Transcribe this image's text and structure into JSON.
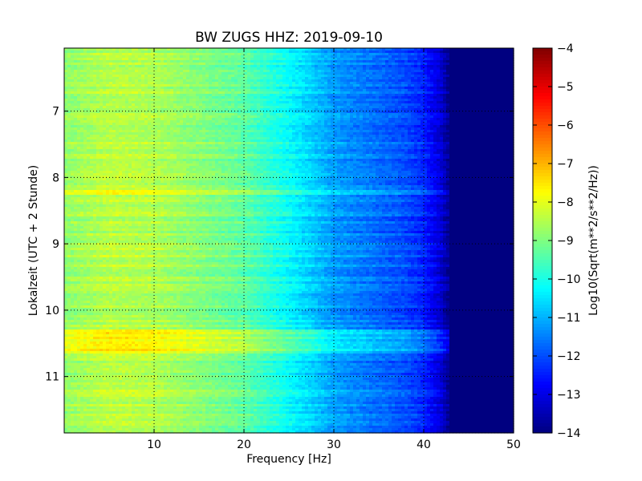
{
  "chart_data": {
    "type": "heatmap",
    "title": "BW ZUGS HHZ: 2019-09-10",
    "xlabel": "Frequency [Hz]",
    "ylabel": "Lokalzeit (UTC + 2 Stunde)",
    "xlim": [
      0,
      50
    ],
    "ylim": [
      6.05,
      11.85
    ],
    "x_ticks": [
      10,
      20,
      30,
      40,
      50
    ],
    "y_ticks": [
      7,
      8,
      9,
      10,
      11
    ],
    "grid": true,
    "colormap": "jet",
    "colorbar": {
      "label": "Log10(Sqrt(m**2/s**2/Hz))",
      "range": [
        -14,
        -4
      ],
      "ticks": [
        -14,
        -13,
        -12,
        -11,
        -10,
        -9,
        -8,
        -7,
        -6,
        -5,
        -4
      ]
    },
    "profile": {
      "frequency_hz": [
        0,
        5,
        10,
        15,
        20,
        25,
        30,
        35,
        38,
        40,
        42,
        43,
        45,
        50
      ],
      "log10_psd": [
        -8.8,
        -8.4,
        -8.5,
        -8.9,
        -9.3,
        -10.2,
        -11.2,
        -11.7,
        -12.0,
        -12.4,
        -13.2,
        -14,
        -14,
        -14
      ]
    },
    "bands": [
      {
        "start_time": 10.28,
        "end_time": 10.65,
        "offset": 0.9
      },
      {
        "start_time": 8.2,
        "end_time": 8.25,
        "offset": 0.5
      },
      {
        "start_time": 9.15,
        "end_time": 9.2,
        "offset": 0.5
      },
      {
        "start_time": 11.2,
        "end_time": 11.24,
        "offset": 0.5
      },
      {
        "start_time": 7.45,
        "end_time": 7.5,
        "offset": 0.45
      }
    ]
  }
}
